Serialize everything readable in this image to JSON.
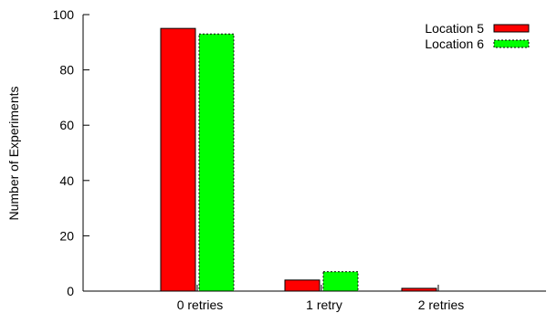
{
  "chart_data": {
    "type": "bar",
    "categories": [
      "0 retries",
      "1 retry",
      "2 retries"
    ],
    "series": [
      {
        "name": "Location 5",
        "values": [
          95,
          4,
          1
        ],
        "color": "#ff0000",
        "border": "solid"
      },
      {
        "name": "Location 6",
        "values": [
          93,
          7,
          0
        ],
        "color": "#00ff00",
        "border": "dashed"
      }
    ],
    "xlabel": "",
    "ylabel": "Number of Experiments",
    "ylim": [
      0,
      100
    ],
    "yticks": [
      0,
      20,
      40,
      60,
      80,
      100
    ],
    "grid": false,
    "legend_position": "top-right"
  }
}
